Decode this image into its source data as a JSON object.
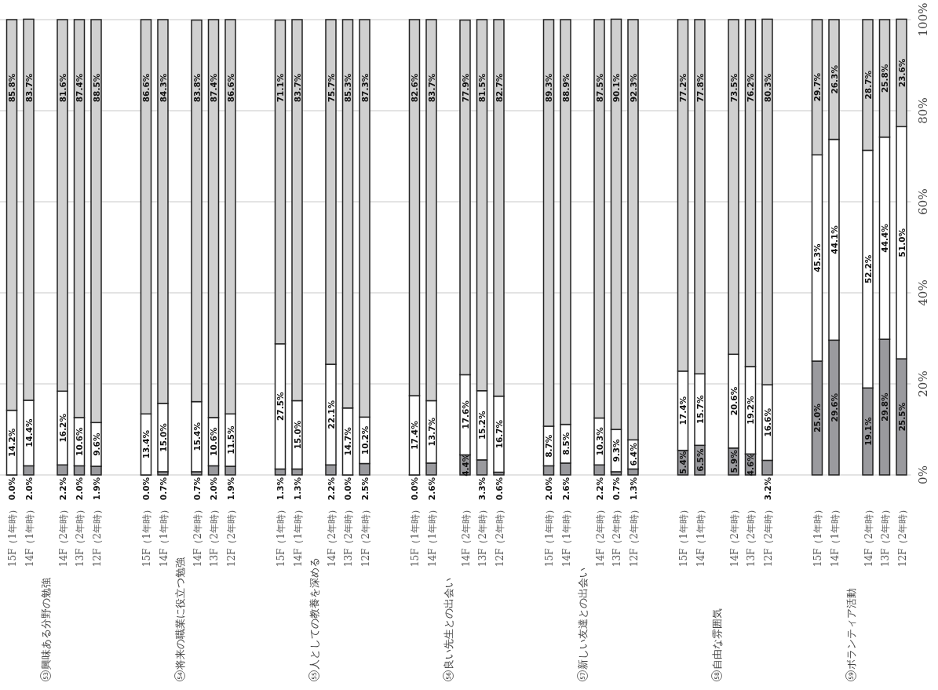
{
  "chart_data": {
    "type": "bar",
    "stacked": true,
    "grid": "y",
    "categories": [
      "15F（1年時）",
      "14F（1年時）",
      "14F（2年時）",
      "13F（2年時）",
      "12F（2年時）",
      "15F（1年時）",
      "14F（1年時）",
      "14F（2年時）",
      "13F（2年時）",
      "12F（2年時）",
      "15F（1年時）",
      "14F（1年時）",
      "14F（2年時）",
      "13F（2年時）",
      "12F（2年時）",
      "15F（1年時）",
      "14F（1年時）",
      "14F（2年時）",
      "13F（2年時）",
      "12F（2年時）",
      "15F（1年時）",
      "14F（1年時）",
      "14F（2年時）",
      "13F（2年時）",
      "12F（2年時）",
      "15F（1年時）",
      "14F（1年時）",
      "14F（2年時）",
      "13F（2年時）",
      "12F（2年時）",
      "15F（1年時）",
      "14F（1年時）",
      "14F（2年時）",
      "13F（2年時）",
      "12F（2年時）"
    ],
    "annotations": [
      "53興味ある分野の勉強",
      "54将来の職業に役立つ勉強",
      "55人としての教養を深める",
      "56良い先生との出会い",
      "57新しい友達との出会い",
      "58自由な雰囲気",
      "59ボランティア活動"
    ],
    "ylim": [
      0,
      100
    ],
    "yticks": [
      {
        "value": 0,
        "label": "0%"
      },
      {
        "value": 20,
        "label": "20%"
      },
      {
        "value": 40,
        "label": "40%"
      },
      {
        "value": 60,
        "label": "60%"
      },
      {
        "value": 80,
        "label": "80%"
      },
      {
        "value": 100,
        "label": "100%"
      }
    ],
    "series": [
      {
        "color": "#9a9a9e",
        "values": [
          0.0,
          2.0,
          2.2,
          2.0,
          1.9,
          0.0,
          0.7,
          0.7,
          2.0,
          1.9,
          1.3,
          1.3,
          2.2,
          0.0,
          2.5,
          0.0,
          2.6,
          4.4,
          3.3,
          0.6,
          2.0,
          2.6,
          2.2,
          0.7,
          1.3,
          5.4,
          6.5,
          5.9,
          4.6,
          3.2,
          25.0,
          29.6,
          19.1,
          29.8,
          25.5
        ],
        "value_labels": [
          "0.0%",
          "2.0%",
          "2.2%",
          "2.0%",
          "1.9%",
          "0.0%",
          "0.7%",
          "0.7%",
          "2.0%",
          "1.9%",
          "1.3%",
          "1.3%",
          "2.2%",
          "0.0%",
          "2.5%",
          "0.0%",
          "2.6%",
          "4.4%",
          "3.3%",
          "0.6%",
          "2.0%",
          "2.6%",
          "2.2%",
          "0.7%",
          "1.3%",
          "5.4%",
          "6.5%",
          "5.9%",
          "4.6%",
          "3.2%",
          "25.0%",
          "29.6%",
          "19.1%",
          "29.8%",
          "25.5%"
        ]
      },
      {
        "color": "#ffffff",
        "values": [
          14.2,
          14.4,
          16.2,
          10.6,
          9.6,
          13.4,
          15.0,
          15.4,
          10.6,
          11.5,
          27.5,
          15.0,
          22.1,
          14.7,
          10.2,
          17.4,
          13.7,
          17.6,
          15.2,
          16.7,
          8.7,
          8.5,
          10.3,
          9.3,
          6.4,
          17.4,
          15.7,
          20.6,
          19.2,
          16.6,
          45.3,
          44.1,
          52.2,
          44.4,
          51.0
        ],
        "value_labels": [
          "14.2%",
          "14.4%",
          "16.2%",
          "10.6%",
          "9.6%",
          "13.4%",
          "15.0%",
          "15.4%",
          "10.6%",
          "11.5%",
          "27.5%",
          "15.0%",
          "22.1%",
          "14.7%",
          "10.2%",
          "17.4%",
          "13.7%",
          "17.6%",
          "15.2%",
          "16.7%",
          "8.7%",
          "8.5%",
          "10.3%",
          "9.3%",
          "6.4%",
          "17.4%",
          "15.7%",
          "20.6%",
          "19.2%",
          "16.6%",
          "45.3%",
          "44.1%",
          "52.2%",
          "44.4%",
          "51.0%"
        ]
      },
      {
        "color": "#d0d0d0",
        "values": [
          85.8,
          83.7,
          81.6,
          87.4,
          88.5,
          86.6,
          84.3,
          83.8,
          87.4,
          86.6,
          71.1,
          83.7,
          75.7,
          85.3,
          87.3,
          82.6,
          83.7,
          77.9,
          81.5,
          82.7,
          89.3,
          88.9,
          87.5,
          90.1,
          92.3,
          77.2,
          77.8,
          73.5,
          76.2,
          80.3,
          29.7,
          26.3,
          28.7,
          25.8,
          23.6
        ],
        "value_labels": [
          "85.8%",
          "83.7%",
          "81.6%",
          "87.4%",
          "88.5%",
          "86.6%",
          "84.3%",
          "83.8%",
          "87.4%",
          "86.6%",
          "71.1%",
          "83.7%",
          "75.7%",
          "85.3%",
          "87.3%",
          "82.6%",
          "83.7%",
          "77.9%",
          "81.5%",
          "82.7%",
          "89.3%",
          "88.9%",
          "87.5%",
          "90.1%",
          "92.3%",
          "77.2%",
          "77.8%",
          "73.5%",
          "76.2%",
          "80.3%",
          "29.7%",
          "26.3%",
          "28.7%",
          "25.8%",
          "23.6%"
        ]
      }
    ]
  }
}
